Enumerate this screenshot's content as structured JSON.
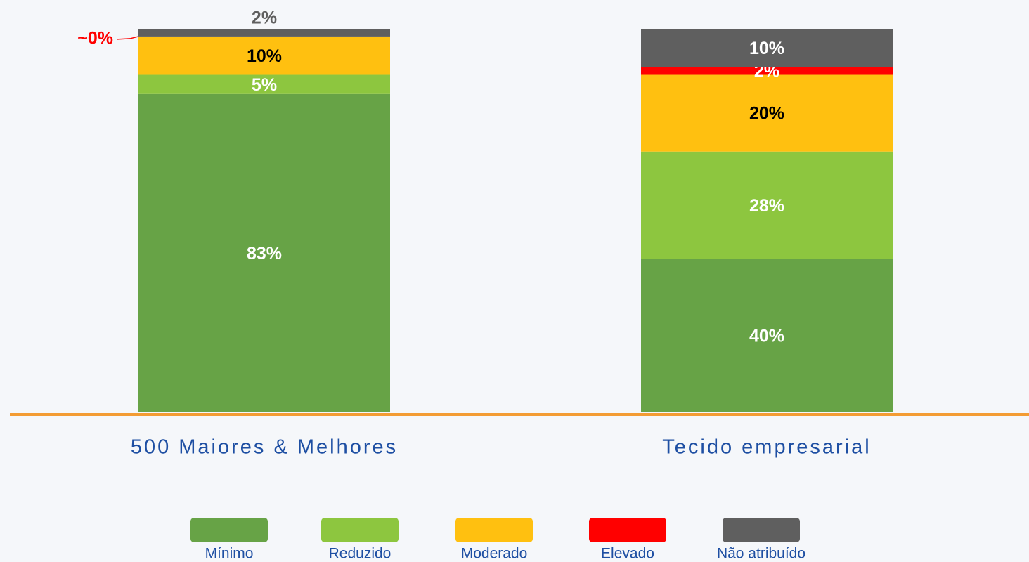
{
  "chart_data": {
    "type": "stacked_bar",
    "categories": [
      "500 Maiores & Melhores",
      "Tecido empresarial"
    ],
    "series": [
      {
        "name": "Mínimo",
        "color": "#67a346",
        "label_color": "#ffffff",
        "values": [
          83,
          40
        ],
        "value_labels": [
          "83%",
          "40%"
        ]
      },
      {
        "name": "Reduzido",
        "color": "#8dc63f",
        "label_color": "#ffffff",
        "values": [
          5,
          28
        ],
        "value_labels": [
          "5%",
          "28%"
        ]
      },
      {
        "name": "Moderado",
        "color": "#ffc010",
        "label_color": "#000000",
        "values": [
          10,
          20
        ],
        "value_labels": [
          "10%",
          "20%"
        ]
      },
      {
        "name": "Elevado",
        "color": "#ff0000",
        "label_color": "#ffffff",
        "values": [
          0,
          2
        ],
        "value_labels": [
          "~0%",
          "2%"
        ]
      },
      {
        "name": "Não atribuído",
        "color": "#5f5f5f",
        "label_color": "#ffffff",
        "values": [
          2,
          10
        ],
        "value_labels": [
          "2%",
          "10%"
        ]
      }
    ],
    "ylim": [
      0,
      100
    ],
    "baseline_color": "#f39c34",
    "legend": "bottom"
  }
}
